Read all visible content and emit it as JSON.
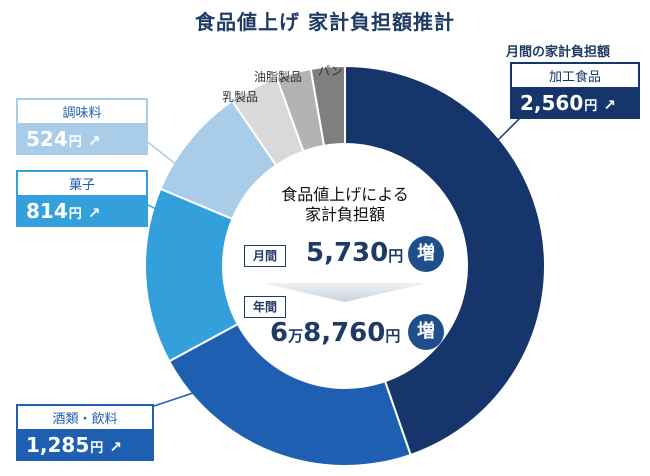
{
  "title": "食品値上げ 家計負担額推計",
  "chart_data": {
    "type": "pie",
    "variant": "donut",
    "title": "食品値上げ 家計負担額推計",
    "unit": "円",
    "monthly_label": "月間の家計負担額",
    "slices": [
      {
        "name": "加工食品",
        "value": 2560,
        "display": "2,560",
        "color": "#15356b"
      },
      {
        "name": "酒類・飲料",
        "value": 1285,
        "display": "1,285",
        "color": "#1f5fb2"
      },
      {
        "name": "菓子",
        "value": 814,
        "display": "814",
        "color": "#33a0dc"
      },
      {
        "name": "調味料",
        "value": 524,
        "display": "524",
        "color": "#a9cde9"
      },
      {
        "name": "乳製品",
        "value": 230,
        "color": "#d9d9d9"
      },
      {
        "name": "油脂製品",
        "value": 160,
        "color": "#b3b3b3"
      },
      {
        "name": "パン",
        "value": 157,
        "color": "#7f7f7f"
      }
    ]
  },
  "center": {
    "title_line1": "食品値上げによる",
    "title_line2": "家計負担額",
    "monthly_tag": "月間",
    "monthly_value": "5,730",
    "annual_tag": "年間",
    "annual_man": "6",
    "annual_man_unit": "万",
    "annual_value": "8,760",
    "unit": "円",
    "increase": "増"
  },
  "arrow_glyph": "↗"
}
